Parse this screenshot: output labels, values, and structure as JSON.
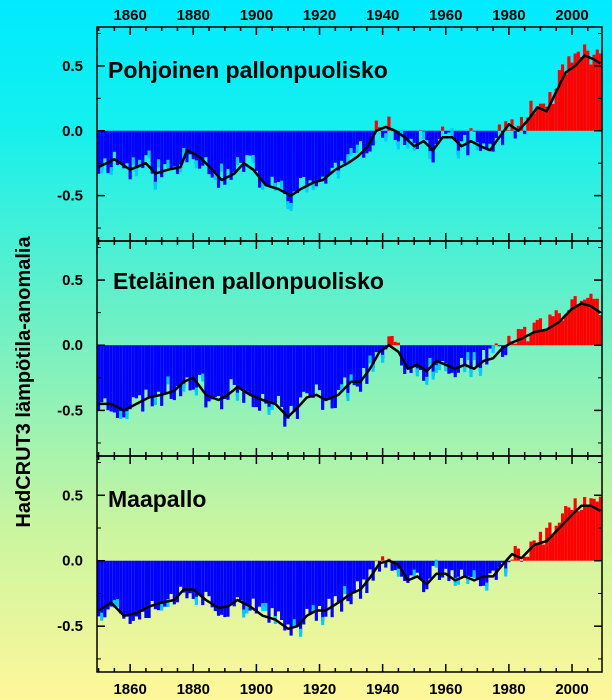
{
  "figure": {
    "ylabel": "HadCRUT3  lämpötila-anomalia",
    "colors": {
      "negative": "#0000ff",
      "positive": "#ff0000",
      "smooth": "#000000",
      "bar_highlight": "#00ccff"
    }
  },
  "chart_data": [
    {
      "type": "bar",
      "title": "Pohjoinen pallonpuolisko",
      "xlabel": "",
      "ylabel": "",
      "xlim": [
        1850,
        2009
      ],
      "ylim": [
        -0.85,
        0.8
      ],
      "xticks": [
        1860,
        1880,
        1900,
        1920,
        1940,
        1960,
        1980,
        2000
      ],
      "yticks": [
        0.5,
        0.0,
        -0.5
      ],
      "ytick_labels": [
        "0.5",
        "0.0",
        "-0.5"
      ],
      "smooth_anchors": [
        [
          1850,
          -0.28
        ],
        [
          1855,
          -0.22
        ],
        [
          1860,
          -0.3
        ],
        [
          1865,
          -0.25
        ],
        [
          1868,
          -0.33
        ],
        [
          1872,
          -0.3
        ],
        [
          1876,
          -0.28
        ],
        [
          1878,
          -0.15
        ],
        [
          1882,
          -0.2
        ],
        [
          1886,
          -0.3
        ],
        [
          1889,
          -0.38
        ],
        [
          1893,
          -0.33
        ],
        [
          1896,
          -0.25
        ],
        [
          1899,
          -0.3
        ],
        [
          1903,
          -0.42
        ],
        [
          1907,
          -0.45
        ],
        [
          1911,
          -0.5
        ],
        [
          1914,
          -0.45
        ],
        [
          1918,
          -0.4
        ],
        [
          1921,
          -0.38
        ],
        [
          1925,
          -0.3
        ],
        [
          1929,
          -0.25
        ],
        [
          1932,
          -0.2
        ],
        [
          1935,
          -0.13
        ],
        [
          1938,
          0.0
        ],
        [
          1941,
          0.03
        ],
        [
          1944,
          0.0
        ],
        [
          1947,
          -0.05
        ],
        [
          1950,
          -0.12
        ],
        [
          1953,
          -0.08
        ],
        [
          1956,
          -0.15
        ],
        [
          1959,
          -0.05
        ],
        [
          1962,
          -0.05
        ],
        [
          1965,
          -0.12
        ],
        [
          1968,
          -0.08
        ],
        [
          1971,
          -0.12
        ],
        [
          1974,
          -0.15
        ],
        [
          1977,
          -0.05
        ],
        [
          1980,
          0.05
        ],
        [
          1983,
          0.0
        ],
        [
          1986,
          0.08
        ],
        [
          1989,
          0.18
        ],
        [
          1992,
          0.15
        ],
        [
          1995,
          0.3
        ],
        [
          1998,
          0.45
        ],
        [
          2001,
          0.5
        ],
        [
          2004,
          0.58
        ],
        [
          2007,
          0.55
        ],
        [
          2009,
          0.52
        ]
      ],
      "pos_start": 1986,
      "pos_val_offset": 0.03,
      "pos_noise": 0.09,
      "neg_noise": 0.1,
      "seed": 11
    },
    {
      "type": "bar",
      "title": "Eteläinen pallonpuolisko",
      "xlabel": "",
      "ylabel": "",
      "xlim": [
        1850,
        2009
      ],
      "ylim": [
        -0.85,
        0.8
      ],
      "xticks": [
        1860,
        1880,
        1900,
        1920,
        1940,
        1960,
        1980,
        2000
      ],
      "yticks": [
        0.5,
        0.0,
        -0.5
      ],
      "ytick_labels": [
        "0.5",
        "0.0",
        "-0.5"
      ],
      "smooth_anchors": [
        [
          1850,
          -0.45
        ],
        [
          1854,
          -0.45
        ],
        [
          1858,
          -0.5
        ],
        [
          1862,
          -0.45
        ],
        [
          1866,
          -0.4
        ],
        [
          1870,
          -0.38
        ],
        [
          1874,
          -0.35
        ],
        [
          1877,
          -0.28
        ],
        [
          1880,
          -0.25
        ],
        [
          1884,
          -0.38
        ],
        [
          1888,
          -0.42
        ],
        [
          1891,
          -0.38
        ],
        [
          1894,
          -0.32
        ],
        [
          1898,
          -0.38
        ],
        [
          1902,
          -0.42
        ],
        [
          1906,
          -0.45
        ],
        [
          1910,
          -0.55
        ],
        [
          1913,
          -0.48
        ],
        [
          1916,
          -0.4
        ],
        [
          1919,
          -0.38
        ],
        [
          1922,
          -0.42
        ],
        [
          1926,
          -0.38
        ],
        [
          1930,
          -0.28
        ],
        [
          1933,
          -0.28
        ],
        [
          1936,
          -0.18
        ],
        [
          1939,
          -0.05
        ],
        [
          1942,
          0.0
        ],
        [
          1945,
          -0.05
        ],
        [
          1948,
          -0.18
        ],
        [
          1951,
          -0.15
        ],
        [
          1954,
          -0.2
        ],
        [
          1957,
          -0.12
        ],
        [
          1960,
          -0.15
        ],
        [
          1963,
          -0.18
        ],
        [
          1966,
          -0.15
        ],
        [
          1969,
          -0.18
        ],
        [
          1972,
          -0.12
        ],
        [
          1975,
          -0.1
        ],
        [
          1978,
          -0.02
        ],
        [
          1981,
          0.02
        ],
        [
          1984,
          0.05
        ],
        [
          1988,
          0.1
        ],
        [
          1992,
          0.12
        ],
        [
          1996,
          0.18
        ],
        [
          2000,
          0.28
        ],
        [
          2003,
          0.32
        ],
        [
          2006,
          0.3
        ],
        [
          2009,
          0.25
        ]
      ],
      "pos_start": 1980,
      "pos_val_offset": 0.05,
      "pos_noise": 0.07,
      "neg_noise": 0.1,
      "seed": 23
    },
    {
      "type": "bar",
      "title": "Maapallo",
      "xlabel": "",
      "ylabel": "",
      "xlim": [
        1850,
        2009
      ],
      "ylim": [
        -0.85,
        0.8
      ],
      "xticks": [
        1860,
        1880,
        1900,
        1920,
        1940,
        1960,
        1980,
        2000
      ],
      "yticks": [
        0.5,
        0.0,
        -0.5
      ],
      "ytick_labels": [
        "0.5",
        "0.0",
        "-0.5"
      ],
      "smooth_anchors": [
        [
          1850,
          -0.38
        ],
        [
          1854,
          -0.32
        ],
        [
          1858,
          -0.42
        ],
        [
          1862,
          -0.4
        ],
        [
          1866,
          -0.35
        ],
        [
          1870,
          -0.32
        ],
        [
          1874,
          -0.3
        ],
        [
          1877,
          -0.22
        ],
        [
          1880,
          -0.22
        ],
        [
          1884,
          -0.3
        ],
        [
          1888,
          -0.36
        ],
        [
          1891,
          -0.35
        ],
        [
          1894,
          -0.3
        ],
        [
          1898,
          -0.35
        ],
        [
          1902,
          -0.42
        ],
        [
          1906,
          -0.45
        ],
        [
          1910,
          -0.52
        ],
        [
          1913,
          -0.5
        ],
        [
          1916,
          -0.42
        ],
        [
          1919,
          -0.38
        ],
        [
          1922,
          -0.38
        ],
        [
          1926,
          -0.32
        ],
        [
          1930,
          -0.25
        ],
        [
          1933,
          -0.22
        ],
        [
          1936,
          -0.13
        ],
        [
          1939,
          -0.02
        ],
        [
          1942,
          0.0
        ],
        [
          1945,
          -0.03
        ],
        [
          1948,
          -0.15
        ],
        [
          1951,
          -0.12
        ],
        [
          1954,
          -0.18
        ],
        [
          1957,
          -0.1
        ],
        [
          1960,
          -0.1
        ],
        [
          1963,
          -0.15
        ],
        [
          1966,
          -0.12
        ],
        [
          1969,
          -0.15
        ],
        [
          1972,
          -0.12
        ],
        [
          1975,
          -0.12
        ],
        [
          1978,
          -0.03
        ],
        [
          1981,
          0.05
        ],
        [
          1984,
          0.02
        ],
        [
          1988,
          0.12
        ],
        [
          1992,
          0.15
        ],
        [
          1996,
          0.25
        ],
        [
          2000,
          0.35
        ],
        [
          2003,
          0.42
        ],
        [
          2006,
          0.42
        ],
        [
          2009,
          0.38
        ]
      ],
      "pos_start": 1982,
      "pos_val_offset": 0.04,
      "pos_noise": 0.08,
      "neg_noise": 0.09,
      "seed": 37
    }
  ]
}
